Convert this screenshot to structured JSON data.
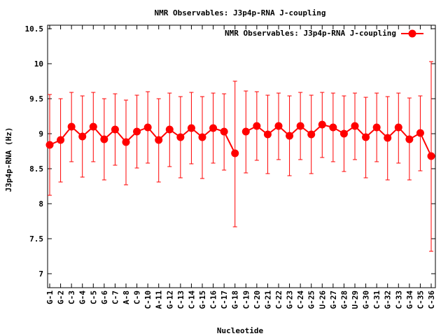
{
  "chart_data": {
    "type": "line",
    "title": "NMR Observables: J3p4p-RNA J-coupling",
    "xlabel": "Nucleotide",
    "ylabel": "J3p4p-RNA (Hz)",
    "ylim": [
      6.8,
      10.55
    ],
    "yticks": [
      7,
      7.5,
      8,
      8.5,
      9,
      9.5,
      10,
      10.5
    ],
    "grid": false,
    "legend_position": "top-right",
    "categories": [
      "G-1",
      "G-2",
      "C-3",
      "G-4",
      "C-5",
      "G-6",
      "C-7",
      "A-8",
      "C-9",
      "C-10",
      "A-11",
      "G-12",
      "C-13",
      "C-14",
      "G-15",
      "C-16",
      "C-17",
      "G-18",
      "C-19",
      "C-20",
      "G-21",
      "C-22",
      "G-23",
      "C-24",
      "G-25",
      "U-26",
      "G-27",
      "G-28",
      "U-29",
      "G-30",
      "C-31",
      "G-32",
      "C-33",
      "G-34",
      "C-35",
      "C-36"
    ],
    "series": [
      {
        "name": "NMR Observables: J3p4p-RNA J-coupling",
        "color": "#ff0000",
        "segments": [
          [
            0,
            17
          ],
          [
            18,
            35
          ]
        ],
        "values": [
          8.84,
          8.91,
          9.1,
          8.96,
          9.1,
          8.92,
          9.06,
          8.88,
          9.03,
          9.09,
          8.91,
          9.06,
          8.95,
          9.08,
          8.95,
          9.08,
          9.03,
          8.72,
          9.03,
          9.11,
          8.99,
          9.11,
          8.97,
          9.11,
          8.99,
          9.13,
          9.09,
          9.0,
          9.11,
          8.95,
          9.09,
          8.94,
          9.09,
          8.92,
          9.01,
          8.68
        ],
        "err_low": [
          8.12,
          8.31,
          8.6,
          8.38,
          8.6,
          8.34,
          8.55,
          8.27,
          8.51,
          8.58,
          8.31,
          8.53,
          8.37,
          8.57,
          8.36,
          8.58,
          8.48,
          7.67,
          8.44,
          8.62,
          8.43,
          8.63,
          8.4,
          8.63,
          8.43,
          8.66,
          8.6,
          8.46,
          8.63,
          8.37,
          8.6,
          8.34,
          8.58,
          8.34,
          8.47,
          7.32
        ],
        "err_high": [
          9.56,
          9.5,
          9.59,
          9.54,
          9.59,
          9.5,
          9.57,
          9.48,
          9.55,
          9.6,
          9.5,
          9.58,
          9.53,
          9.59,
          9.53,
          9.58,
          9.57,
          9.75,
          9.61,
          9.6,
          9.55,
          9.58,
          9.54,
          9.59,
          9.55,
          9.59,
          9.58,
          9.54,
          9.58,
          9.52,
          9.58,
          9.53,
          9.58,
          9.51,
          9.54,
          10.03
        ]
      }
    ]
  }
}
